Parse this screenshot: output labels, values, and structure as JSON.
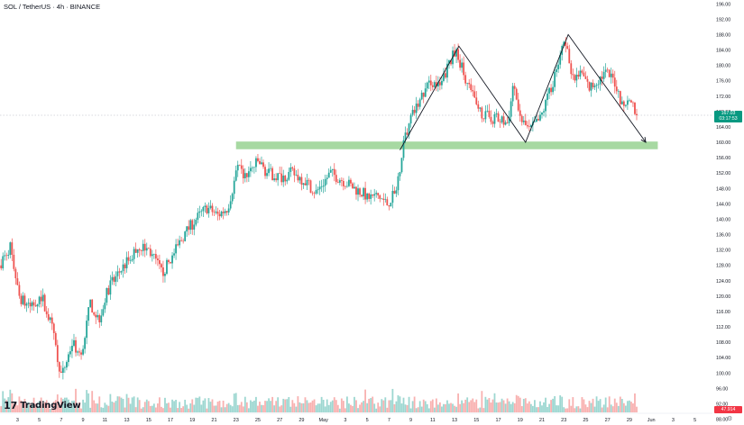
{
  "header": {
    "title": "SOL / TetherUS · 4h · BINANCE"
  },
  "logo": {
    "mark": "17",
    "text": "TradingView"
  },
  "price_tag": {
    "value": "167.03",
    "countdown": "03:17:53"
  },
  "volume_tag": {
    "value": "47.914"
  },
  "colors": {
    "up": "#26a69a",
    "down": "#ef5350",
    "zone": "#a7d9a2",
    "axis_text": "#131722",
    "price_tag": "#089981",
    "volume_tag": "#f23645"
  },
  "icons": {
    "settings": "gear-icon"
  },
  "chart_data": {
    "type": "candlestick",
    "y_axis": {
      "ticks": [
        88,
        92,
        96,
        100,
        104,
        108,
        112,
        116,
        120,
        124,
        128,
        132,
        136,
        140,
        144,
        148,
        152,
        156,
        160,
        164,
        168,
        172,
        176,
        180,
        184,
        188,
        192,
        196
      ],
      "tick_labels": [
        "88.00",
        "92.00",
        "96.00",
        "100.00",
        "104.00",
        "108.00",
        "112.00",
        "116.00",
        "120.00",
        "124.00",
        "128.00",
        "132.00",
        "136.00",
        "140.00",
        "144.00",
        "148.00",
        "152.00",
        "156.00",
        "160.00",
        "164.00",
        "168.00",
        "172.00",
        "176.00",
        "180.00",
        "184.00",
        "188.00",
        "192.00",
        "196.00"
      ],
      "range": [
        86.5,
        197
      ]
    },
    "x_axis": {
      "tick_labels": [
        "3",
        "5",
        "7",
        "9",
        "11",
        "13",
        "15",
        "17",
        "19",
        "21",
        "23",
        "25",
        "27",
        "29",
        "May",
        "3",
        "5",
        "7",
        "9",
        "11",
        "13",
        "15",
        "17",
        "19",
        "21",
        "23",
        "25",
        "27",
        "29",
        "Jun",
        "3",
        "5"
      ],
      "tick_days": [
        3,
        5,
        7,
        9,
        11,
        13,
        15,
        17,
        19,
        21,
        23,
        25,
        27,
        29,
        31,
        33,
        35,
        37,
        39,
        41,
        43,
        45,
        47,
        49,
        51,
        53,
        55,
        57,
        59,
        61,
        63,
        65
      ],
      "range_days": [
        1.4,
        66.6
      ]
    },
    "price_path": [
      {
        "day": 1.5,
        "price": 128
      },
      {
        "day": 2.5,
        "price": 133
      },
      {
        "day": 3.3,
        "price": 120
      },
      {
        "day": 4.2,
        "price": 117
      },
      {
        "day": 5.4,
        "price": 120
      },
      {
        "day": 6.3,
        "price": 112
      },
      {
        "day": 7.2,
        "price": 99
      },
      {
        "day": 8.2,
        "price": 108
      },
      {
        "day": 9.0,
        "price": 104
      },
      {
        "day": 9.8,
        "price": 118
      },
      {
        "day": 10.6,
        "price": 114
      },
      {
        "day": 11.5,
        "price": 122
      },
      {
        "day": 12.4,
        "price": 126
      },
      {
        "day": 13.5,
        "price": 130
      },
      {
        "day": 14.3,
        "price": 133
      },
      {
        "day": 15.2,
        "price": 132
      },
      {
        "day": 16.4,
        "price": 126
      },
      {
        "day": 17.3,
        "price": 130
      },
      {
        "day": 18.4,
        "price": 136
      },
      {
        "day": 19.5,
        "price": 140
      },
      {
        "day": 20.5,
        "price": 143
      },
      {
        "day": 21.5,
        "price": 141
      },
      {
        "day": 22.4,
        "price": 143
      },
      {
        "day": 23.3,
        "price": 153
      },
      {
        "day": 24.0,
        "price": 151
      },
      {
        "day": 25.2,
        "price": 155
      },
      {
        "day": 26.0,
        "price": 152
      },
      {
        "day": 27.2,
        "price": 151
      },
      {
        "day": 28.3,
        "price": 152
      },
      {
        "day": 29.5,
        "price": 150
      },
      {
        "day": 30.5,
        "price": 147
      },
      {
        "day": 31.8,
        "price": 152
      },
      {
        "day": 33.0,
        "price": 150
      },
      {
        "day": 34.0,
        "price": 148
      },
      {
        "day": 35.2,
        "price": 146
      },
      {
        "day": 36.2,
        "price": 146
      },
      {
        "day": 37.0,
        "price": 144
      },
      {
        "day": 37.8,
        "price": 147
      },
      {
        "day": 38.5,
        "price": 160
      },
      {
        "day": 39.3,
        "price": 167
      },
      {
        "day": 40.2,
        "price": 172
      },
      {
        "day": 41.0,
        "price": 176
      },
      {
        "day": 41.8,
        "price": 174
      },
      {
        "day": 42.6,
        "price": 180
      },
      {
        "day": 43.3,
        "price": 184
      },
      {
        "day": 44.0,
        "price": 178
      },
      {
        "day": 44.8,
        "price": 172
      },
      {
        "day": 45.8,
        "price": 167
      },
      {
        "day": 47.0,
        "price": 166
      },
      {
        "day": 48.0,
        "price": 165
      },
      {
        "day": 48.6,
        "price": 175
      },
      {
        "day": 49.2,
        "price": 166
      },
      {
        "day": 50.0,
        "price": 163
      },
      {
        "day": 51.0,
        "price": 166
      },
      {
        "day": 52.0,
        "price": 174
      },
      {
        "day": 52.8,
        "price": 182
      },
      {
        "day": 53.3,
        "price": 186
      },
      {
        "day": 54.0,
        "price": 176
      },
      {
        "day": 54.8,
        "price": 178
      },
      {
        "day": 55.5,
        "price": 174
      },
      {
        "day": 56.2,
        "price": 176
      },
      {
        "day": 57.0,
        "price": 178
      },
      {
        "day": 57.8,
        "price": 176
      },
      {
        "day": 58.5,
        "price": 170
      },
      {
        "day": 59.3,
        "price": 172
      },
      {
        "day": 59.8,
        "price": 167
      }
    ],
    "annotations": {
      "support_zone": {
        "from_day": 23.0,
        "to_day": 61.6,
        "price_low": 158.2,
        "price_high": 160.2
      },
      "pattern_line": [
        {
          "day": 38.0,
          "price": 158
        },
        {
          "day": 43.4,
          "price": 185
        },
        {
          "day": 49.5,
          "price": 160
        },
        {
          "day": 53.4,
          "price": 188
        },
        {
          "day": 60.5,
          "price": 160
        }
      ]
    },
    "current_price": 167.03,
    "grid": false
  }
}
